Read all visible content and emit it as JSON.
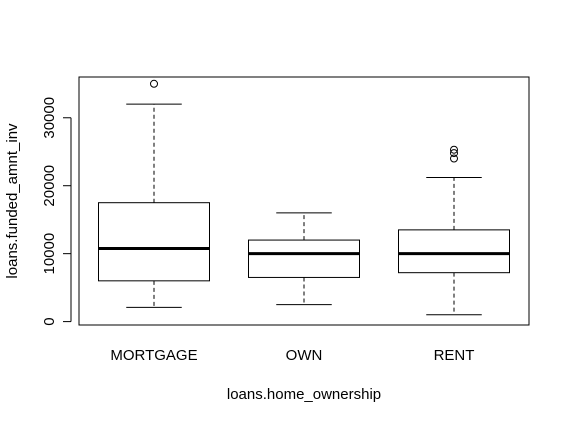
{
  "chart_data": {
    "type": "boxplot",
    "xlabel": "loans.home_ownership",
    "ylabel": "loans.funded_amnt_inv",
    "ylim": [
      -500,
      36000
    ],
    "yticks": [
      0,
      10000,
      20000,
      30000
    ],
    "categories": [
      "MORTGAGE",
      "OWN",
      "RENT"
    ],
    "boxes": [
      {
        "name": "MORTGAGE",
        "whisker_low": 2100,
        "q1": 6000,
        "median": 10750,
        "q3": 17500,
        "whisker_high": 32000,
        "outliers": [
          35000
        ]
      },
      {
        "name": "OWN",
        "whisker_low": 2500,
        "q1": 6500,
        "median": 10000,
        "q3": 12000,
        "whisker_high": 16000,
        "outliers": []
      },
      {
        "name": "RENT",
        "whisker_low": 1000,
        "q1": 7200,
        "median": 10000,
        "q3": 13500,
        "whisker_high": 21200,
        "outliers": [
          24000,
          24800,
          25300
        ]
      }
    ],
    "grid": false,
    "frame": true
  }
}
